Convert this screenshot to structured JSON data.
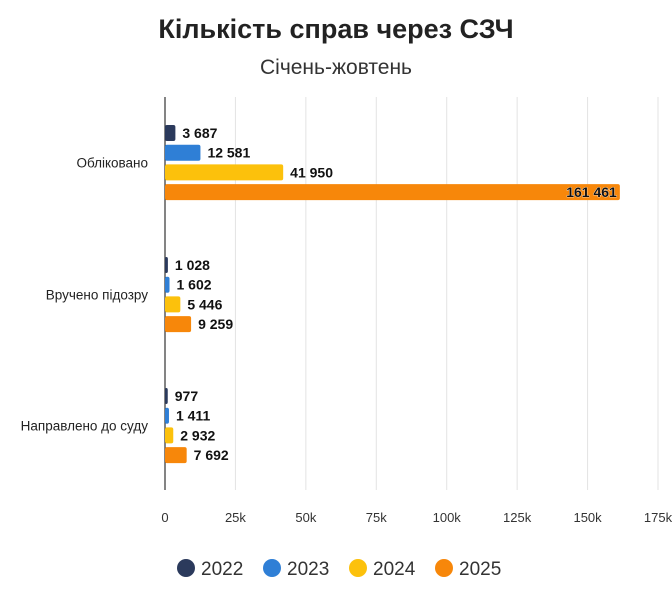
{
  "chart_data": {
    "type": "bar",
    "orientation": "horizontal",
    "title": "Кількість справ через СЗЧ",
    "subtitle": "Січень-жовтень",
    "categories": [
      "Обліковано",
      "Вручено підозру",
      "Направлено до суду"
    ],
    "series": [
      {
        "name": "2022",
        "color": "#2b3a5c",
        "values": [
          3687,
          1028,
          977
        ],
        "labels": [
          "3 687",
          "1 028",
          "977"
        ]
      },
      {
        "name": "2023",
        "color": "#2f7fd6",
        "values": [
          12581,
          1602,
          1411
        ],
        "labels": [
          "12 581",
          "1 602",
          "1 411"
        ]
      },
      {
        "name": "2024",
        "color": "#fcc10c",
        "values": [
          41950,
          5446,
          2932
        ],
        "labels": [
          "41 950",
          "5 446",
          "2 932"
        ]
      },
      {
        "name": "2025",
        "color": "#f7870a",
        "values": [
          161461,
          9259,
          7692
        ],
        "labels": [
          "161 461",
          "9 259",
          "7 692"
        ]
      }
    ],
    "xlim": [
      0,
      175000
    ],
    "xticks": [
      "0",
      "25k",
      "50k",
      "75k",
      "100k",
      "125k",
      "150k",
      "175k"
    ],
    "grid": true,
    "legend": "bottom"
  }
}
